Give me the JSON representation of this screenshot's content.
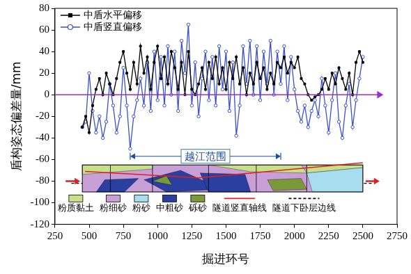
{
  "chart_data": {
    "type": "line",
    "x_label": "掘进环号",
    "y_label": "盾构姿态偏差量/mm",
    "xlim": [
      250,
      2750
    ],
    "xticks": [
      250,
      500,
      750,
      1000,
      1250,
      1500,
      1750,
      2000,
      2250,
      2500,
      2750
    ],
    "ylim": [
      -120,
      80
    ],
    "yticks": [
      -120,
      -100,
      -80,
      -60,
      -40,
      -20,
      0,
      20,
      40,
      60,
      80
    ],
    "grid": false,
    "legend": "upper-left",
    "x": [
      450,
      475,
      500,
      525,
      550,
      575,
      600,
      625,
      650,
      675,
      700,
      725,
      750,
      775,
      800,
      825,
      850,
      875,
      900,
      925,
      950,
      975,
      1000,
      1025,
      1050,
      1075,
      1100,
      1125,
      1150,
      1175,
      1200,
      1225,
      1250,
      1275,
      1300,
      1325,
      1350,
      1375,
      1400,
      1425,
      1450,
      1475,
      1500,
      1525,
      1550,
      1575,
      1600,
      1625,
      1650,
      1675,
      1700,
      1725,
      1750,
      1775,
      1800,
      1825,
      1850,
      1875,
      1900,
      1925,
      1950,
      1975,
      2000,
      2025,
      2050,
      2075,
      2100,
      2125,
      2150,
      2175,
      2200,
      2225,
      2250,
      2275,
      2300,
      2325,
      2350,
      2375,
      2400,
      2425,
      2450,
      2475,
      2500
    ],
    "series": [
      {
        "name": "中盾水平偏移",
        "color": "#000000",
        "marker": "square",
        "line_style": "solid",
        "values": [
          -30,
          -20,
          -35,
          -10,
          5,
          15,
          0,
          20,
          10,
          0,
          15,
          30,
          40,
          20,
          5,
          30,
          10,
          45,
          20,
          35,
          5,
          30,
          45,
          15,
          35,
          10,
          40,
          25,
          5,
          30,
          0,
          40,
          5,
          0,
          10,
          25,
          5,
          30,
          15,
          35,
          10,
          25,
          5,
          30,
          15,
          35,
          10,
          25,
          0,
          20,
          10,
          30,
          15,
          25,
          5,
          20,
          10,
          30,
          25,
          35,
          20,
          30,
          25,
          35,
          15,
          10,
          0,
          -5,
          -2,
          0,
          5,
          15,
          5,
          20,
          10,
          25,
          15,
          5,
          20,
          0,
          30,
          40,
          30
        ]
      },
      {
        "name": "中盾竖直偏移",
        "color": "#3a4fd0",
        "marker": "circle",
        "line_style": "solid",
        "values": [
          -30,
          -25,
          20,
          -15,
          -35,
          -20,
          -40,
          -25,
          10,
          -10,
          -35,
          -20,
          25,
          -10,
          -50,
          -20,
          -5,
          15,
          -10,
          30,
          -15,
          40,
          -5,
          35,
          -10,
          45,
          0,
          40,
          -15,
          50,
          20,
          65,
          -10,
          30,
          -20,
          15,
          40,
          -5,
          35,
          -10,
          45,
          5,
          40,
          -15,
          30,
          -38,
          -10,
          45,
          10,
          50,
          0,
          45,
          -5,
          40,
          10,
          50,
          0,
          40,
          10,
          45,
          -5,
          35,
          5,
          -15,
          -25,
          -10,
          -30,
          -15,
          -5,
          -20,
          15,
          -10,
          -35,
          -5,
          20,
          -25,
          -40,
          -10,
          10,
          -30,
          -5,
          15,
          35
        ]
      }
    ],
    "zero_line": {
      "x": [
        250,
        2650
      ],
      "y": 0,
      "color": "#9b30c8"
    },
    "crossing_range": {
      "text": "越江范围",
      "x": [
        800,
        1900
      ],
      "y": -57,
      "color": "#1f4e9a"
    },
    "profile": {
      "x": [
        450,
        2500
      ],
      "y": [
        -65,
        -90
      ],
      "layers": [
        {
          "name": "粉质黏土",
          "color": "#c8e08a"
        },
        {
          "name": "粉细砂",
          "color": "#c99fd8"
        },
        {
          "name": "粉砂",
          "color": "#a8dcef"
        },
        {
          "name": "中粗砂",
          "color": "#2a3fa0"
        },
        {
          "name": "砾砂",
          "color": "#7a9a3a"
        }
      ],
      "tunnel_axis": {
        "name": "隧道竖直轴线",
        "color": "#e02020",
        "x": [
          470,
          1300,
          2500
        ],
        "y": [
          -71,
          -77,
          -63
        ]
      },
      "bed_line": {
        "name": "隧道下卧层边线",
        "color": "#000000",
        "line_style": "dashed",
        "x": [
          370,
          2570
        ],
        "y": -82
      },
      "flow_color": "#e02020"
    }
  }
}
